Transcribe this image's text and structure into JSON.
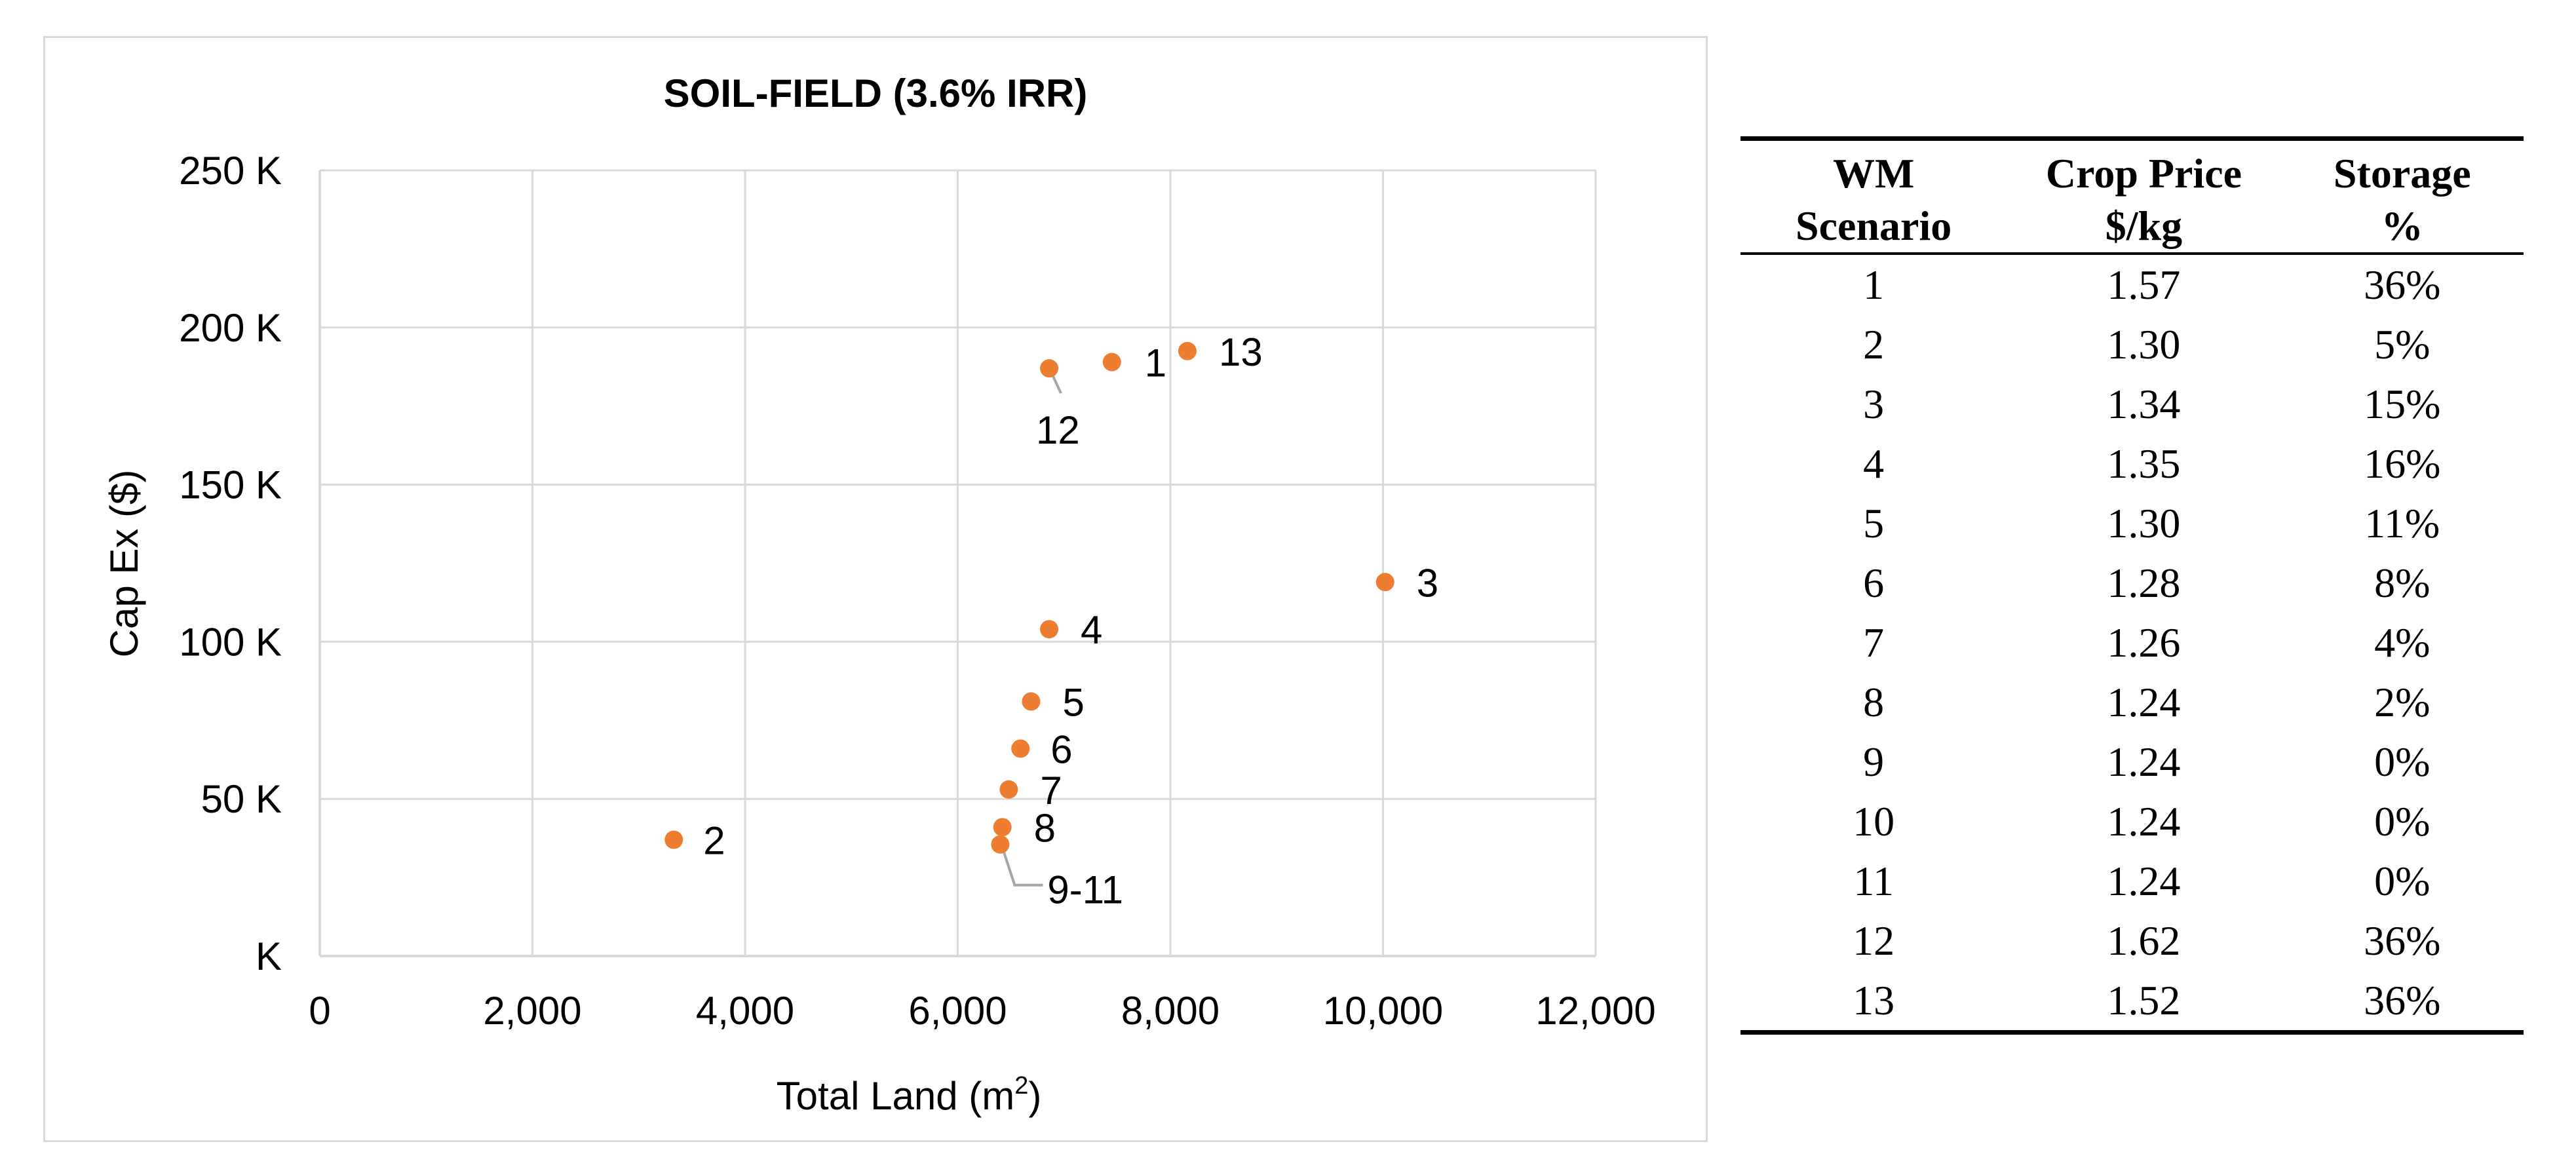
{
  "chart_data": {
    "type": "scatter",
    "title": "SOIL-FIELD (3.6% IRR)",
    "xlabel": "Total Land (m",
    "xlabel_sup": "2",
    "xlabel_suffix": ")",
    "ylabel": "Cap Ex ($)",
    "xlim": [
      0,
      12000
    ],
    "ylim": [
      0,
      250000
    ],
    "xticks": [
      0,
      2000,
      4000,
      6000,
      8000,
      10000,
      12000
    ],
    "xtick_labels": [
      "0",
      "2,000",
      "4,000",
      "6,000",
      "8,000",
      "10,000",
      "12,000"
    ],
    "yticks": [
      0,
      50000,
      100000,
      150000,
      200000,
      250000
    ],
    "ytick_labels": [
      "K",
      "50 K",
      "100 K",
      "150 K",
      "200 K",
      "250 K"
    ],
    "grid": true,
    "marker_color": "#ED7D31",
    "points": [
      {
        "label": "1",
        "x": 7450,
        "y": 189000
      },
      {
        "label": "2",
        "x": 3330,
        "y": 37000
      },
      {
        "label": "3",
        "x": 10020,
        "y": 119000
      },
      {
        "label": "4",
        "x": 6860,
        "y": 104000
      },
      {
        "label": "5",
        "x": 6690,
        "y": 81000
      },
      {
        "label": "6",
        "x": 6590,
        "y": 66000
      },
      {
        "label": "7",
        "x": 6480,
        "y": 53000
      },
      {
        "label": "8",
        "x": 6420,
        "y": 41000
      },
      {
        "label": "9-11",
        "x": 6400,
        "y": 35500
      },
      {
        "label": "12",
        "x": 6860,
        "y": 187000
      },
      {
        "label": "13",
        "x": 8160,
        "y": 192500
      }
    ]
  },
  "table": {
    "headers": [
      {
        "line1": "WM",
        "line2": "Scenario"
      },
      {
        "line1": "Crop Price",
        "line2": "$/kg"
      },
      {
        "line1": "Storage",
        "line2": "%"
      }
    ],
    "rows": [
      [
        "1",
        "1.57",
        "36%"
      ],
      [
        "2",
        "1.30",
        "5%"
      ],
      [
        "3",
        "1.34",
        "15%"
      ],
      [
        "4",
        "1.35",
        "16%"
      ],
      [
        "5",
        "1.30",
        "11%"
      ],
      [
        "6",
        "1.28",
        "8%"
      ],
      [
        "7",
        "1.26",
        "4%"
      ],
      [
        "8",
        "1.24",
        "2%"
      ],
      [
        "9",
        "1.24",
        "0%"
      ],
      [
        "10",
        "1.24",
        "0%"
      ],
      [
        "11",
        "1.24",
        "0%"
      ],
      [
        "12",
        "1.62",
        "36%"
      ],
      [
        "13",
        "1.52",
        "36%"
      ]
    ]
  }
}
